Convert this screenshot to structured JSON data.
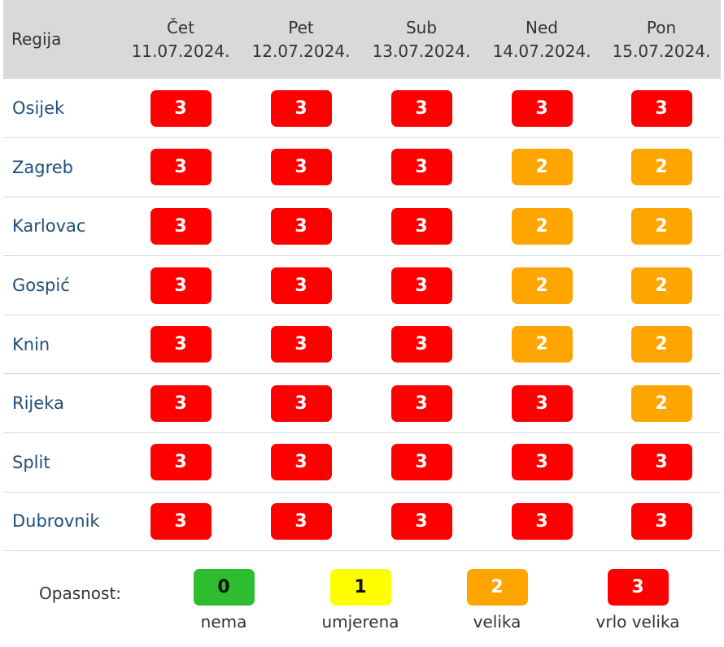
{
  "header": {
    "region_label": "Regija",
    "days": [
      {
        "day": "Čet",
        "date": "11.07.2024."
      },
      {
        "day": "Pet",
        "date": "12.07.2024."
      },
      {
        "day": "Sub",
        "date": "13.07.2024."
      },
      {
        "day": "Ned",
        "date": "14.07.2024."
      },
      {
        "day": "Pon",
        "date": "15.07.2024."
      }
    ]
  },
  "rows": [
    {
      "region": "Osijek",
      "levels": [
        "3",
        "3",
        "3",
        "3",
        "3"
      ]
    },
    {
      "region": "Zagreb",
      "levels": [
        "3",
        "3",
        "3",
        "2",
        "2"
      ]
    },
    {
      "region": "Karlovac",
      "levels": [
        "3",
        "3",
        "3",
        "2",
        "2"
      ]
    },
    {
      "region": "Gospić",
      "levels": [
        "3",
        "3",
        "3",
        "2",
        "2"
      ]
    },
    {
      "region": "Knin",
      "levels": [
        "3",
        "3",
        "3",
        "2",
        "2"
      ]
    },
    {
      "region": "Rijeka",
      "levels": [
        "3",
        "3",
        "3",
        "3",
        "2"
      ]
    },
    {
      "region": "Split",
      "levels": [
        "3",
        "3",
        "3",
        "3",
        "3"
      ]
    },
    {
      "region": "Dubrovnik",
      "levels": [
        "3",
        "3",
        "3",
        "3",
        "3"
      ]
    }
  ],
  "legend": {
    "title": "Opasnost:",
    "items": [
      {
        "level": "0",
        "label": "nema"
      },
      {
        "level": "1",
        "label": "umjerena"
      },
      {
        "level": "2",
        "label": "velika"
      },
      {
        "level": "3",
        "label": "vrlo velika"
      }
    ]
  },
  "colors": {
    "level_0": "#2ebd2e",
    "level_1": "#ffff00",
    "level_2": "#ffa500",
    "level_3": "#ff0000"
  }
}
